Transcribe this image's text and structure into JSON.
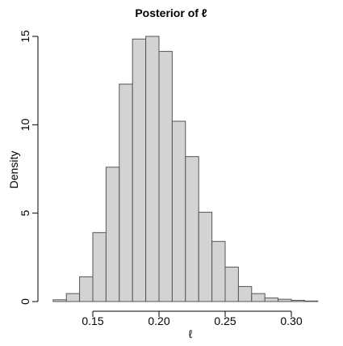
{
  "chart_data": {
    "type": "bar",
    "title": "Posterior of ℓ",
    "xlabel": "ℓ",
    "ylabel": "Density",
    "bin_width": 0.01,
    "bin_edges": [
      0.12,
      0.13,
      0.14,
      0.15,
      0.16,
      0.17,
      0.18,
      0.19,
      0.2,
      0.21,
      0.22,
      0.23,
      0.24,
      0.25,
      0.26,
      0.27,
      0.28,
      0.29,
      0.3,
      0.31,
      0.32
    ],
    "values": [
      0.1,
      0.45,
      1.4,
      3.9,
      7.6,
      12.3,
      14.85,
      15.0,
      14.15,
      10.2,
      8.2,
      5.05,
      3.4,
      1.95,
      0.85,
      0.45,
      0.2,
      0.13,
      0.07,
      0.03
    ],
    "xlim": [
      0.12,
      0.33
    ],
    "ylim": [
      0,
      15
    ],
    "x_ticks": [
      "0.15",
      "0.20",
      "0.25",
      "0.30"
    ],
    "y_ticks": [
      "0",
      "5",
      "10",
      "15"
    ],
    "grid": false,
    "colors": {
      "bar_fill": "#d3d3d3",
      "bar_stroke": "#555555",
      "axis": "#000000"
    }
  }
}
